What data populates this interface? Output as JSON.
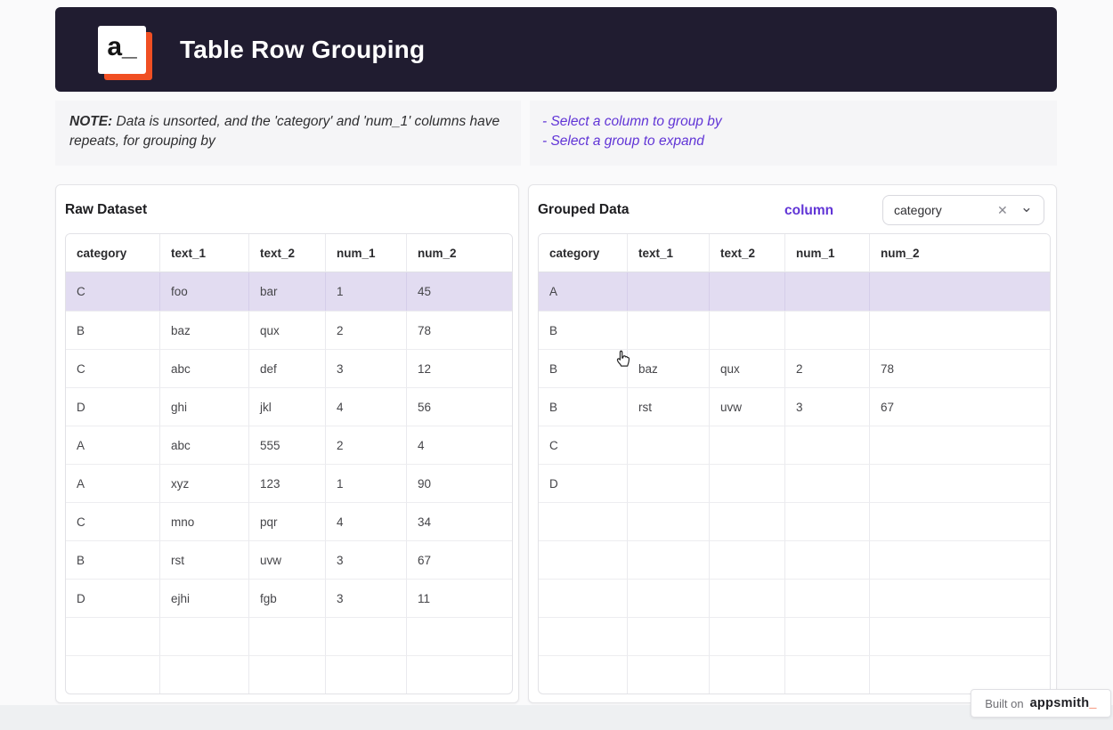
{
  "colors": {
    "header_bg": "#201c30",
    "accent_purple": "#6135d6",
    "highlight_row": "#e2dcf1",
    "brand_orange": "#f04f23"
  },
  "header": {
    "logo_text": "a_",
    "title": "Table Row Grouping"
  },
  "note": {
    "label": "NOTE:",
    "text": " Data is unsorted, and the 'category' and 'num_1' columns have repeats, for grouping by"
  },
  "instructions": {
    "line1": "- Select a column to group by",
    "line2": "- Select a group to expand"
  },
  "raw_table": {
    "title": "Raw Dataset",
    "columns": [
      "category",
      "text_1",
      "text_2",
      "num_1",
      "num_2"
    ],
    "rows": [
      {
        "cells": [
          "C",
          "foo",
          "bar",
          "1",
          "45"
        ],
        "highlighted": true
      },
      {
        "cells": [
          "B",
          "baz",
          "qux",
          "2",
          "78"
        ],
        "highlighted": false
      },
      {
        "cells": [
          "C",
          "abc",
          "def",
          "3",
          "12"
        ],
        "highlighted": false
      },
      {
        "cells": [
          "D",
          "ghi",
          "jkl",
          "4",
          "56"
        ],
        "highlighted": false
      },
      {
        "cells": [
          "A",
          "abc",
          "555",
          "2",
          "4"
        ],
        "highlighted": false
      },
      {
        "cells": [
          "A",
          "xyz",
          "123",
          "1",
          "90"
        ],
        "highlighted": false
      },
      {
        "cells": [
          "C",
          "mno",
          "pqr",
          "4",
          "34"
        ],
        "highlighted": false
      },
      {
        "cells": [
          "B",
          "rst",
          "uvw",
          "3",
          "67"
        ],
        "highlighted": false
      },
      {
        "cells": [
          "D",
          "ejhi",
          "fgb",
          "3",
          "11"
        ],
        "highlighted": false
      },
      {
        "cells": [
          "",
          "",
          "",
          "",
          ""
        ],
        "highlighted": false
      },
      {
        "cells": [
          "",
          "",
          "",
          "",
          ""
        ],
        "highlighted": false
      }
    ]
  },
  "grouped_table": {
    "title": "Grouped Data",
    "control_label": "column",
    "dropdown": {
      "value": "category",
      "clear_icon": "✕",
      "chevron_icon": "⌄"
    },
    "columns": [
      "category",
      "text_1",
      "text_2",
      "num_1",
      "num_2"
    ],
    "rows": [
      {
        "cells": [
          "A",
          "",
          "",
          "",
          ""
        ],
        "highlighted": true
      },
      {
        "cells": [
          "B",
          "",
          "",
          "",
          ""
        ],
        "highlighted": false
      },
      {
        "cells": [
          "B",
          "baz",
          "qux",
          "2",
          "78"
        ],
        "highlighted": false
      },
      {
        "cells": [
          "B",
          "rst",
          "uvw",
          "3",
          "67"
        ],
        "highlighted": false
      },
      {
        "cells": [
          "C",
          "",
          "",
          "",
          ""
        ],
        "highlighted": false
      },
      {
        "cells": [
          "D",
          "",
          "",
          "",
          ""
        ],
        "highlighted": false
      },
      {
        "cells": [
          "",
          "",
          "",
          "",
          ""
        ],
        "highlighted": false
      },
      {
        "cells": [
          "",
          "",
          "",
          "",
          ""
        ],
        "highlighted": false
      },
      {
        "cells": [
          "",
          "",
          "",
          "",
          ""
        ],
        "highlighted": false
      },
      {
        "cells": [
          "",
          "",
          "",
          "",
          ""
        ],
        "highlighted": false
      },
      {
        "cells": [
          "",
          "",
          "",
          "",
          ""
        ],
        "highlighted": false
      }
    ]
  },
  "badge": {
    "prefix": "Built on",
    "brand": "appsmith",
    "suffix": "_"
  }
}
